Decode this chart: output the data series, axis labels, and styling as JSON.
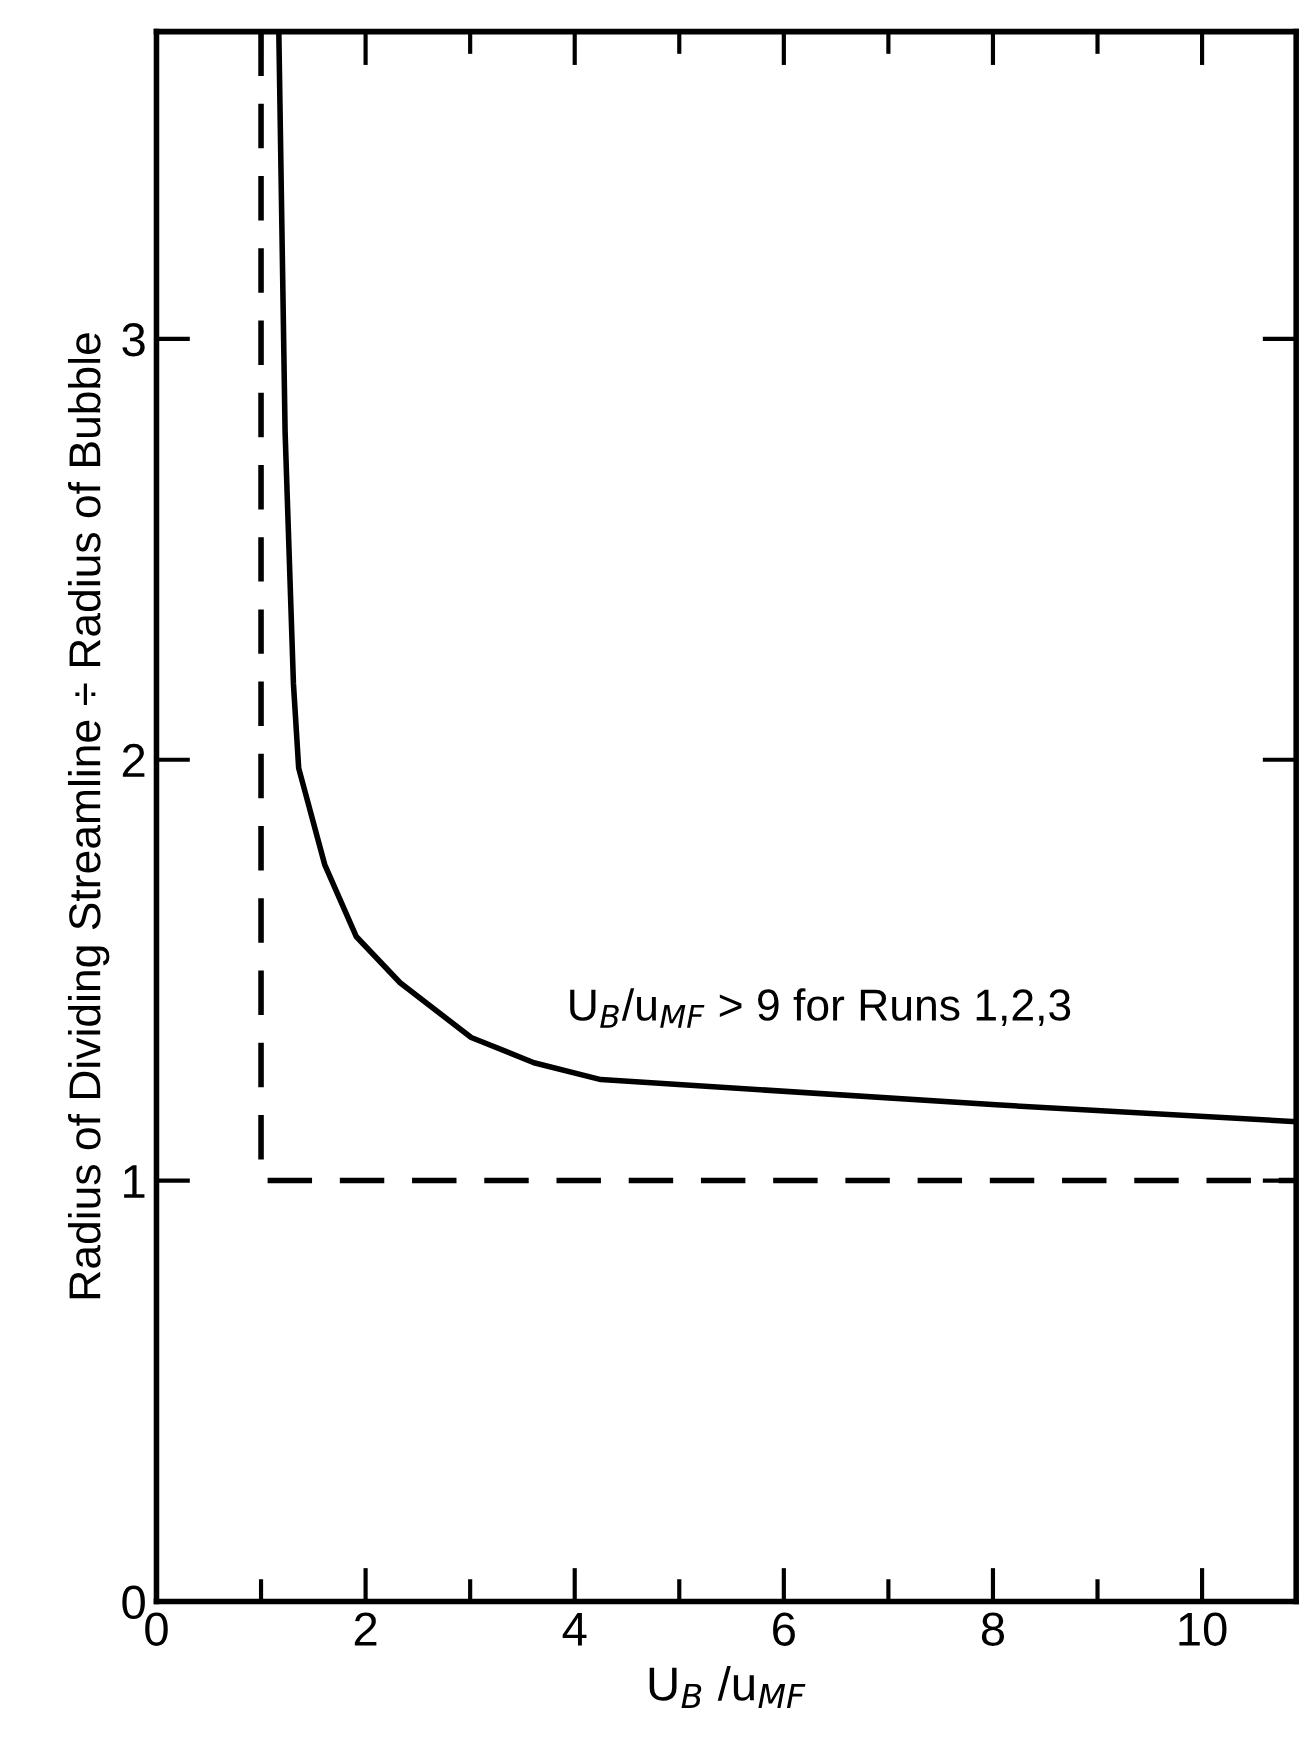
{
  "chart_data": {
    "type": "line",
    "xlabel": "U$_{B}$ /u$_{MF}$",
    "ylabel": "Radius of Dividing Streamline ÷ Radius of Bubble",
    "xlim": [
      0,
      10.9
    ],
    "ylim": [
      0,
      3.73
    ],
    "xticks": [
      0,
      {
        "value": 1,
        "label": null
      },
      2,
      {
        "value": 3,
        "label": null
      },
      4,
      {
        "value": 5,
        "label": null
      },
      6,
      {
        "value": 7,
        "label": null
      },
      8,
      {
        "value": 9,
        "label": null
      },
      10
    ],
    "yticks": [
      0,
      1,
      2,
      3
    ],
    "grid": false,
    "marker": "none",
    "annotations": [
      "U$_{B}$/u$_{MF}$ > 9 for Runs 1,2,3"
    ],
    "series": [
      {
        "color": "#000000",
        "line_style": "solid",
        "x": [
          1.17,
          1.23,
          1.31,
          1.36,
          1.61,
          1.91,
          2.33,
          3.01,
          3.61,
          4.25,
          8.03,
          10.9
        ],
        "values": [
          3.73,
          2.78,
          2.18,
          1.98,
          1.75,
          1.58,
          1.47,
          1.34,
          1.28,
          1.24,
          1.18,
          1.14
        ]
      },
      {
        "color": "#000000",
        "line_style": "dashed",
        "x": [
          1,
          1,
          10.9
        ],
        "values": [
          3.73,
          1,
          1
        ]
      }
    ]
  }
}
